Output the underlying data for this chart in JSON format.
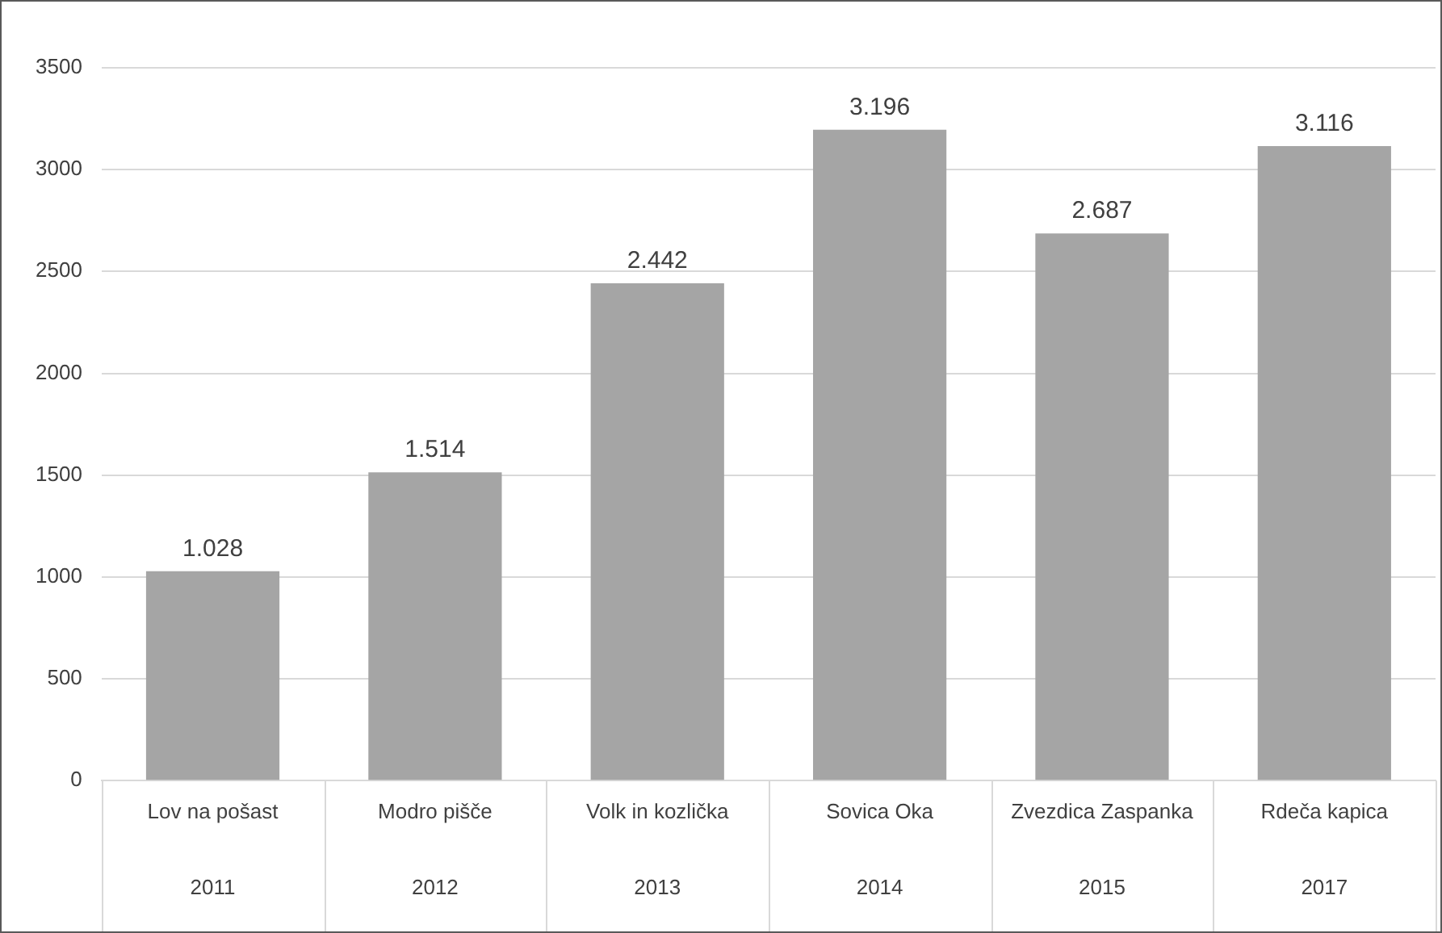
{
  "chart_data": {
    "type": "bar",
    "categories": [
      "Lov na pošast\n2011",
      "Modro pišče\n2012",
      "Volk in kozlička\n2013",
      "Sovica Oka\n2014",
      "Zvezdica Zaspanka\n2015",
      "Rdeča kapica\n2017"
    ],
    "values": [
      1028,
      1514,
      2442,
      3196,
      2687,
      3116
    ],
    "value_labels": [
      "1.028",
      "1.514",
      "2.442",
      "3.196",
      "2.687",
      "3.116"
    ],
    "color": "#a5a5a5",
    "ylim": [
      0,
      3500
    ],
    "yticks": [
      0,
      500,
      1000,
      1500,
      2000,
      2500,
      3000,
      3500
    ],
    "grid": "y",
    "legend": false
  }
}
